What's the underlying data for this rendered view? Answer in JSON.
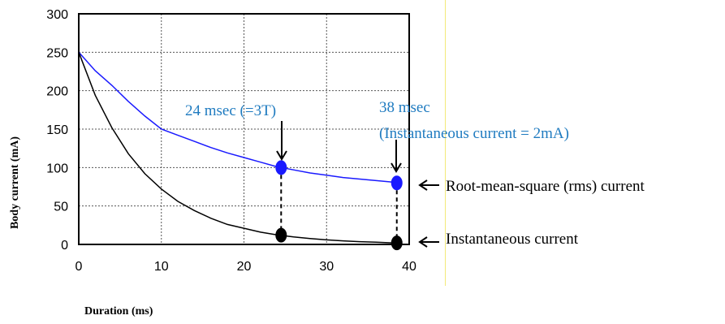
{
  "chart_data": {
    "type": "line",
    "xlabel": "Duration (ms)",
    "ylabel": "Body current (mA)",
    "xlim": [
      0,
      40
    ],
    "ylim": [
      0,
      300
    ],
    "x_ticks": [
      "0",
      "10",
      "20",
      "30",
      "40"
    ],
    "y_ticks": [
      "0",
      "50",
      "100",
      "150",
      "200",
      "250",
      "300"
    ],
    "grid": true,
    "series": [
      {
        "key": "rms",
        "color": "#1a1aff",
        "points": [
          [
            0,
            250
          ],
          [
            2,
            226
          ],
          [
            4,
            207
          ],
          [
            6,
            186
          ],
          [
            8,
            167
          ],
          [
            10,
            150
          ],
          [
            12,
            142
          ],
          [
            14,
            134
          ],
          [
            16,
            126
          ],
          [
            18,
            119
          ],
          [
            20,
            113
          ],
          [
            22,
            107
          ],
          [
            24,
            101
          ],
          [
            26,
            97
          ],
          [
            28,
            93
          ],
          [
            30,
            90
          ],
          [
            32,
            87
          ],
          [
            34,
            85
          ],
          [
            36,
            83
          ],
          [
            38,
            81
          ]
        ]
      },
      {
        "key": "instantaneous",
        "color": "#000000",
        "points": [
          [
            0,
            250
          ],
          [
            2,
            194
          ],
          [
            4,
            152
          ],
          [
            6,
            118
          ],
          [
            8,
            92
          ],
          [
            10,
            72
          ],
          [
            12,
            56
          ],
          [
            14,
            44
          ],
          [
            16,
            34
          ],
          [
            18,
            26
          ],
          [
            20,
            21
          ],
          [
            22,
            16
          ],
          [
            24,
            12.5
          ],
          [
            26,
            9.7
          ],
          [
            28,
            7.6
          ],
          [
            30,
            5.9
          ],
          [
            32,
            4.6
          ],
          [
            34,
            3.6
          ],
          [
            36,
            2.8
          ],
          [
            38,
            2
          ]
        ]
      }
    ],
    "markers": [
      {
        "x": 24.5,
        "y": 100,
        "color": "#1a1aff"
      },
      {
        "x": 38.5,
        "y": 80,
        "color": "#1a1aff"
      },
      {
        "x": 24.5,
        "y": 12,
        "color": "#000000"
      },
      {
        "x": 38.5,
        "y": 2,
        "color": "#000000"
      }
    ],
    "annotations": {
      "t24": "24 msec (=3T)",
      "t38_line1": "38 msec",
      "t38_line2": "(Instantaneous current = 2mA)",
      "rms_label": "Root-mean-square (rms) current",
      "inst_label": "Instantaneous current"
    }
  }
}
